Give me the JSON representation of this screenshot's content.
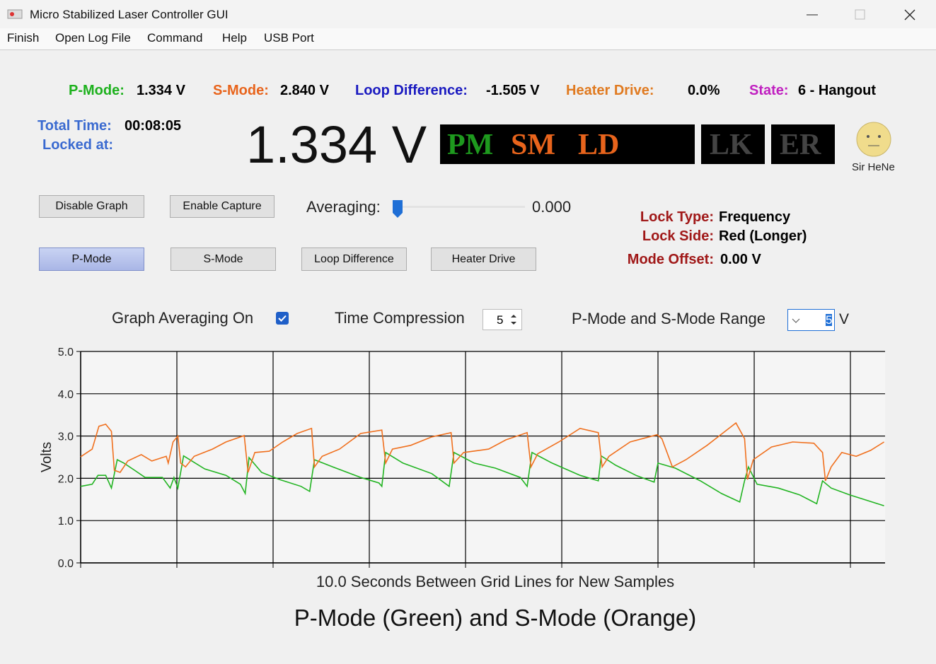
{
  "window": {
    "title": "Micro Stabilized Laser Controller GUI"
  },
  "menu": [
    "Finish",
    "Open Log File",
    "Command",
    "Help",
    "USB Port"
  ],
  "status": [
    {
      "label": "P-Mode:",
      "value": "1.334 V"
    },
    {
      "label": "S-Mode:",
      "value": "2.840 V"
    },
    {
      "label": "Loop Difference:",
      "value": "-1.505 V"
    },
    {
      "label": "Heater Drive:",
      "value": "0.0%"
    },
    {
      "label": "State:",
      "value": "6 - Hangout"
    }
  ],
  "total_time": {
    "label": "Total Time:",
    "value": "00:08:05"
  },
  "locked_at": {
    "label": "Locked at:"
  },
  "big_reading": "1.334 V",
  "indicators": [
    "PM",
    "SM",
    "LD",
    "LK",
    "ER"
  ],
  "avatar_label": "Sir HeNe",
  "buttons": [
    "Disable Graph",
    "Enable Capture"
  ],
  "averaging": {
    "label": "Averaging:",
    "value": "0.000"
  },
  "lock_info": [
    {
      "label": "Lock Type:",
      "value": "Frequency"
    },
    {
      "label": "Lock Side:",
      "value": "Red (Longer)"
    },
    {
      "label": "Mode Offset:",
      "value": "0.00 V"
    }
  ],
  "mode_buttons": [
    "P-Mode",
    "S-Mode",
    "Loop Difference",
    "Heater Drive"
  ],
  "graph_options": {
    "averaging_label": "Graph Averaging On",
    "compression_label": "Time Compression",
    "compression_value": "5",
    "range_label": "P-Mode and S-Mode Range",
    "range_value": "5",
    "range_unit": "V"
  },
  "chart_data": {
    "type": "line",
    "title": "P-Mode (Green) and S-Mode (Orange)",
    "x_label": "10.0 Seconds Between Grid Lines for New Samples",
    "y_label": "Volts",
    "xlim": [
      0,
      83.6
    ],
    "xticks": [
      0,
      10,
      20,
      30,
      40,
      50,
      60,
      70,
      80
    ],
    "ylim": [
      0,
      5
    ],
    "yticks": [
      {
        "value": 0,
        "label": "0.0"
      },
      {
        "value": 1,
        "label": "1.0"
      },
      {
        "value": 2,
        "label": "2.0"
      },
      {
        "value": 3,
        "label": "3.0"
      },
      {
        "value": 4,
        "label": "4.0"
      },
      {
        "value": 5,
        "label": "5.0"
      }
    ],
    "grid": true,
    "series": [
      {
        "name": "P-Mode",
        "color": "#22b422",
        "x": [
          0,
          1.2,
          1.8,
          2.6,
          3.2,
          3.8,
          4.5,
          5.6,
          6.7,
          8.5,
          9.3,
          9.7,
          10.1,
          10.7,
          12.9,
          15.1,
          16.6,
          17.1,
          17.5,
          18.8,
          20.7,
          22.9,
          23.8,
          24.3,
          26.2,
          29.1,
          31.0,
          31.3,
          31.7,
          33.5,
          36.5,
          38.3,
          38.8,
          40.9,
          43.1,
          45.7,
          46.4,
          46.9,
          49.0,
          51.9,
          53.8,
          54.1,
          55.6,
          57.8,
          59.6,
          60.0,
          61.8,
          64.4,
          66.6,
          68.5,
          69.0,
          69.4,
          70.3,
          72.5,
          74.7,
          76.5,
          77.1,
          78.0,
          79.9,
          83.5
        ],
        "values": [
          1.81,
          1.86,
          2.07,
          2.07,
          1.77,
          2.44,
          2.36,
          2.19,
          2.02,
          2.02,
          1.77,
          2.02,
          1.77,
          2.53,
          2.22,
          2.07,
          1.86,
          1.64,
          2.49,
          2.14,
          1.97,
          1.81,
          1.69,
          2.44,
          2.27,
          2.02,
          1.89,
          1.81,
          2.61,
          2.36,
          2.11,
          1.81,
          2.61,
          2.36,
          2.24,
          2.02,
          1.81,
          2.61,
          2.36,
          2.07,
          1.94,
          2.53,
          2.31,
          2.06,
          1.91,
          2.36,
          2.24,
          1.94,
          1.64,
          1.44,
          1.94,
          2.27,
          1.86,
          1.77,
          1.61,
          1.4,
          1.94,
          1.77,
          1.61,
          1.35
        ]
      },
      {
        "name": "S-Mode",
        "color": "#f0701e",
        "x": [
          0,
          1.2,
          1.9,
          2.6,
          3.2,
          3.5,
          4.1,
          4.9,
          6.3,
          7.4,
          8.9,
          9.1,
          9.6,
          10.1,
          10.4,
          10.9,
          11.8,
          13.7,
          15.1,
          17.0,
          17.4,
          18.1,
          19.6,
          21.0,
          22.5,
          24.0,
          24.3,
          25.1,
          26.9,
          29.1,
          31.3,
          31.7,
          32.4,
          34.3,
          36.5,
          38.5,
          38.8,
          39.8,
          42.4,
          44.2,
          46.4,
          46.8,
          47.5,
          49.7,
          51.9,
          53.8,
          54.2,
          54.9,
          57.1,
          59.9,
          60.4,
          61.5,
          62.9,
          65.1,
          68.1,
          69.0,
          69.3,
          69.9,
          71.8,
          74.0,
          76.2,
          77.1,
          77.4,
          78.0,
          79.1,
          80.6,
          82.1,
          83.5
        ],
        "values": [
          2.51,
          2.69,
          3.23,
          3.28,
          3.11,
          2.19,
          2.14,
          2.41,
          2.56,
          2.41,
          2.52,
          2.36,
          2.86,
          3.0,
          2.36,
          2.27,
          2.52,
          2.69,
          2.86,
          3.01,
          2.14,
          2.61,
          2.64,
          2.86,
          3.06,
          3.18,
          2.27,
          2.52,
          2.69,
          3.06,
          3.14,
          2.36,
          2.69,
          2.78,
          2.98,
          3.08,
          2.36,
          2.61,
          2.69,
          2.91,
          3.08,
          2.27,
          2.58,
          2.86,
          3.18,
          3.08,
          2.27,
          2.52,
          2.86,
          3.03,
          2.94,
          2.27,
          2.44,
          2.78,
          3.31,
          2.94,
          1.97,
          2.44,
          2.74,
          2.86,
          2.83,
          2.61,
          1.94,
          2.27,
          2.61,
          2.52,
          2.66,
          2.86
        ]
      }
    ]
  }
}
